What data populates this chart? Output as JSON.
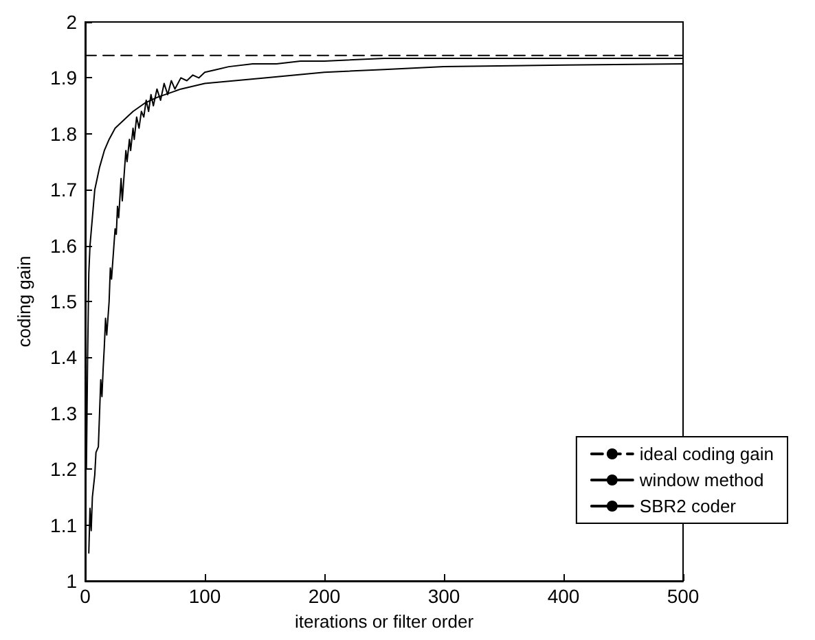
{
  "chart_data": {
    "type": "line",
    "xlabel": "iterations or filter order",
    "ylabel": "coding gain",
    "xlim": [
      0,
      500
    ],
    "xticks": [
      0,
      100,
      200,
      300,
      400,
      500
    ],
    "ylim": [
      1,
      2
    ],
    "yticks": [
      1,
      1.1,
      1.2,
      1.3,
      1.4,
      1.5,
      1.6,
      1.7,
      1.8,
      1.9,
      2
    ],
    "grid": false,
    "legend": "bottom right",
    "marker": "none",
    "series": [
      {
        "name": "ideal coding gain",
        "color": "#000000",
        "line_style": "dashed",
        "x": [
          0,
          500
        ],
        "values": [
          1.94,
          1.94
        ]
      },
      {
        "name": "window method",
        "color": "#000000",
        "line_style": "solid",
        "x": [
          1,
          2,
          3,
          4,
          6,
          8,
          12,
          16,
          20,
          25,
          30,
          40,
          50,
          60,
          80,
          100,
          150,
          200,
          250,
          300,
          400,
          500
        ],
        "values": [
          1.2,
          1.4,
          1.55,
          1.6,
          1.65,
          1.7,
          1.74,
          1.77,
          1.79,
          1.81,
          1.82,
          1.84,
          1.855,
          1.865,
          1.88,
          1.89,
          1.9,
          1.91,
          1.915,
          1.92,
          1.923,
          1.925
        ]
      },
      {
        "name": "SBR2 coder",
        "color": "#000000",
        "line_style": "solid",
        "x": [
          3,
          4,
          5,
          6,
          8,
          9,
          11,
          12,
          13,
          14,
          15,
          16,
          17,
          18,
          20,
          21,
          22,
          24,
          25,
          26,
          27,
          28,
          30,
          31,
          33,
          34,
          35,
          37,
          38,
          40,
          41,
          43,
          45,
          47,
          49,
          51,
          53,
          55,
          57,
          60,
          63,
          66,
          69,
          72,
          75,
          80,
          85,
          90,
          95,
          100,
          110,
          120,
          140,
          160,
          180,
          200,
          250,
          300,
          350,
          400,
          450,
          500
        ],
        "values": [
          1.05,
          1.13,
          1.09,
          1.15,
          1.19,
          1.23,
          1.24,
          1.3,
          1.36,
          1.33,
          1.38,
          1.42,
          1.47,
          1.44,
          1.5,
          1.56,
          1.54,
          1.6,
          1.63,
          1.62,
          1.67,
          1.65,
          1.72,
          1.68,
          1.74,
          1.77,
          1.75,
          1.79,
          1.77,
          1.81,
          1.79,
          1.83,
          1.81,
          1.84,
          1.83,
          1.86,
          1.84,
          1.87,
          1.85,
          1.88,
          1.86,
          1.89,
          1.87,
          1.895,
          1.88,
          1.9,
          1.895,
          1.905,
          1.9,
          1.91,
          1.915,
          1.92,
          1.925,
          1.925,
          1.93,
          1.93,
          1.935,
          1.935,
          1.935,
          1.935,
          1.935,
          1.935
        ]
      }
    ]
  }
}
